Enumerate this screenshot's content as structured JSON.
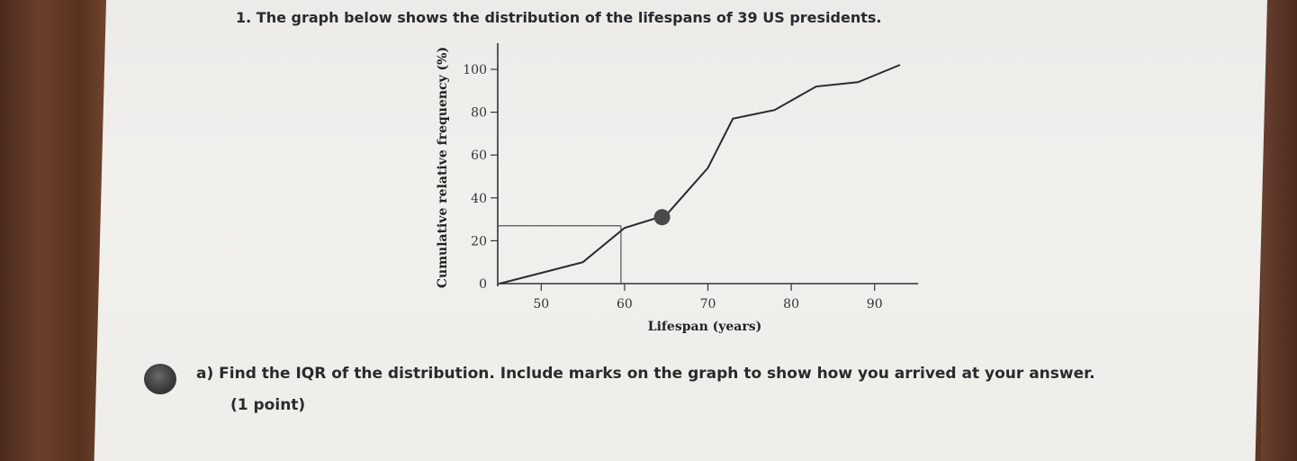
{
  "question": {
    "title": "1.  The graph below shows the distribution of the lifespans of 39 US presidents.",
    "part_a": "a)  Find the IQR of the distribution. Include marks on the graph to show how you arrived at your answer.",
    "points": "(1 point)"
  },
  "chart_data": {
    "type": "line",
    "xlabel": "Lifespan (years)",
    "ylabel": "Cumulative relative frequency (%)",
    "xlim": [
      45,
      95
    ],
    "ylim": [
      0,
      100
    ],
    "x_ticks": [
      50,
      60,
      70,
      80,
      90
    ],
    "y_ticks": [
      0,
      20,
      40,
      60,
      80,
      100
    ],
    "series": [
      {
        "x": [
          45,
          50,
          55,
          60,
          65,
          70,
          73,
          78,
          83,
          88,
          93
        ],
        "y": [
          0,
          5,
          10,
          26,
          32,
          54,
          77,
          81,
          92,
          94,
          102
        ]
      }
    ],
    "marked_point": {
      "x": 64.5,
      "y": 31
    },
    "reference_lines": {
      "y": 27,
      "x": 60
    },
    "colors": {
      "line": "#2b2b2b",
      "marker": "#4a4a4a",
      "reference": "#555555"
    }
  }
}
